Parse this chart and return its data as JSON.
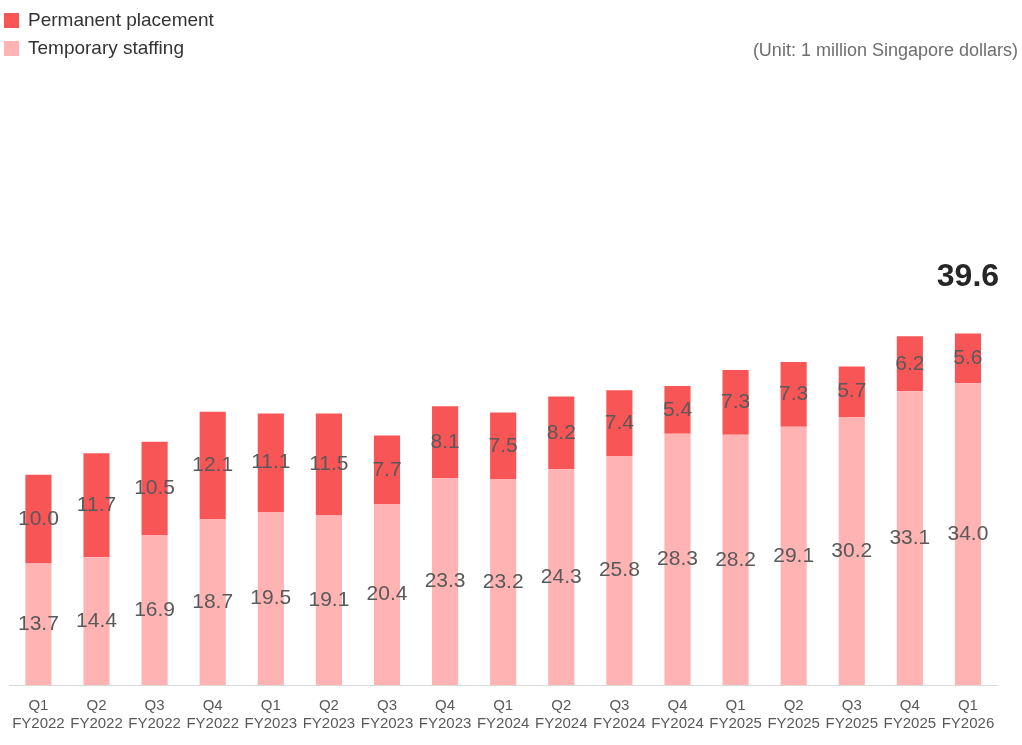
{
  "chart_data": {
    "type": "bar",
    "stacked": true,
    "legend": "top left",
    "grid": false,
    "categories": [
      "Q1\nFY2022",
      "Q2\nFY2022",
      "Q3\nFY2022",
      "Q4\nFY2022",
      "Q1\nFY2023",
      "Q2\nFY2023",
      "Q3\nFY2023",
      "Q4\nFY2023",
      "Q1\nFY2024",
      "Q2\nFY2024",
      "Q3\nFY2024",
      "Q4\nFY2024",
      "Q1\nFY2025",
      "Q2\nFY2025",
      "Q3\nFY2025",
      "Q4\nFY2025",
      "Q1\nFY2026"
    ],
    "series": [
      {
        "name": "Temporary staffing",
        "color": "#ffb3b3",
        "values": [
          13.7,
          14.4,
          16.9,
          18.7,
          19.5,
          19.1,
          20.4,
          23.3,
          23.2,
          24.3,
          25.8,
          28.3,
          28.2,
          29.1,
          30.2,
          33.1,
          34.0
        ],
        "value_labels": [
          "13.7",
          "14.4",
          "16.9",
          "18.7",
          "19.5",
          "19.1",
          "20.4",
          "23.3",
          "23.2",
          "24.3",
          "25.8",
          "28.3",
          "28.2",
          "29.1",
          "30.2",
          "33.1",
          "34.0"
        ]
      },
      {
        "name": "Permanent placement",
        "color": "#f85656",
        "values": [
          10.0,
          11.7,
          10.5,
          12.1,
          11.1,
          11.5,
          7.7,
          8.1,
          7.5,
          8.2,
          7.4,
          5.4,
          7.3,
          7.3,
          5.7,
          6.2,
          5.6
        ],
        "value_labels": [
          "10.0",
          "11.7",
          "10.5",
          "12.1",
          "11.1",
          "11.5",
          "7.7",
          "8.1",
          "7.5",
          "8.2",
          "7.4",
          "5.4",
          "7.3",
          "7.3",
          "5.7",
          "6.2",
          "5.6"
        ]
      }
    ],
    "totals": [
      null,
      null,
      null,
      null,
      null,
      null,
      null,
      null,
      null,
      null,
      null,
      null,
      null,
      null,
      null,
      null,
      "39.6"
    ],
    "annotations": [
      "(Unit: 1 million Singapore dollars)"
    ]
  }
}
